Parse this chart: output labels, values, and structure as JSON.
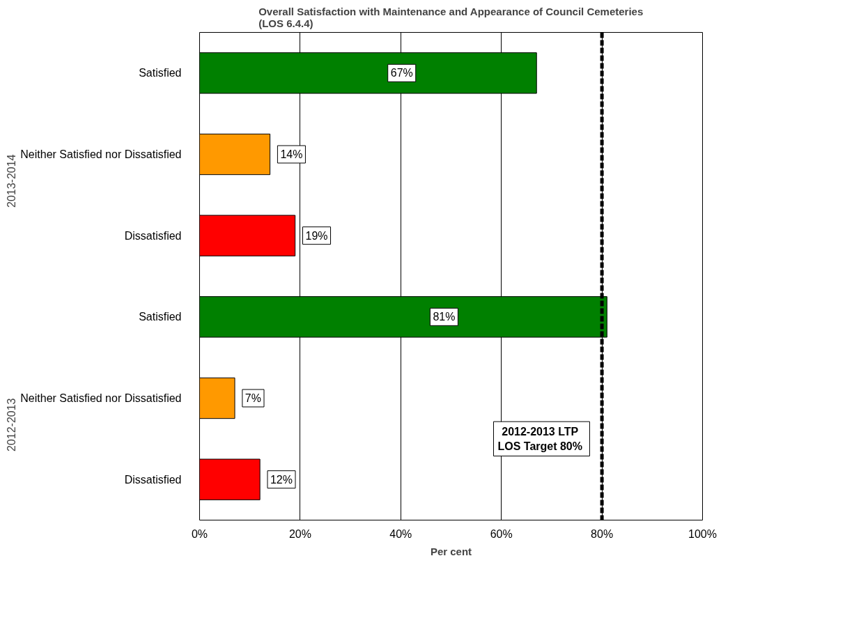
{
  "chart_data": {
    "type": "bar",
    "orientation": "horizontal",
    "title": "Overall Satisfaction with Maintenance and Appearance of Council Cemeteries\n(LOS 6.4.4)",
    "xlabel": "Per cent",
    "categories": [
      "Satisfied",
      "Neither Satisfied nor Dissatisfied",
      "Dissatisfied",
      "Satisfied",
      "Neither Satisfied nor Dissatisfied",
      "Dissatisfied"
    ],
    "values": [
      67,
      14,
      19,
      81,
      7,
      12
    ],
    "colors": [
      "#008000",
      "#ff9900",
      "#ff0000",
      "#008000",
      "#ff9900",
      "#ff0000"
    ],
    "value_labels": [
      "67%",
      "14%",
      "19%",
      "81%",
      "7%",
      "12%"
    ],
    "annotations": [
      "2013-2014",
      "2012-2013"
    ],
    "xlim": [
      0,
      100
    ],
    "xticks": [
      {
        "value": 0,
        "label": "0%"
      },
      {
        "value": 20,
        "label": "20%"
      },
      {
        "value": 40,
        "label": "40%"
      },
      {
        "value": 60,
        "label": "60%"
      },
      {
        "value": 80,
        "label": "80%"
      },
      {
        "value": 100,
        "label": "100%"
      }
    ],
    "grid": "x",
    "ref_lines": [
      {
        "axis": "x",
        "value": 80,
        "label": "2012-2013  LTP\nLOS Target  80%",
        "color": "#000000",
        "line_style": "dashed"
      }
    ]
  }
}
